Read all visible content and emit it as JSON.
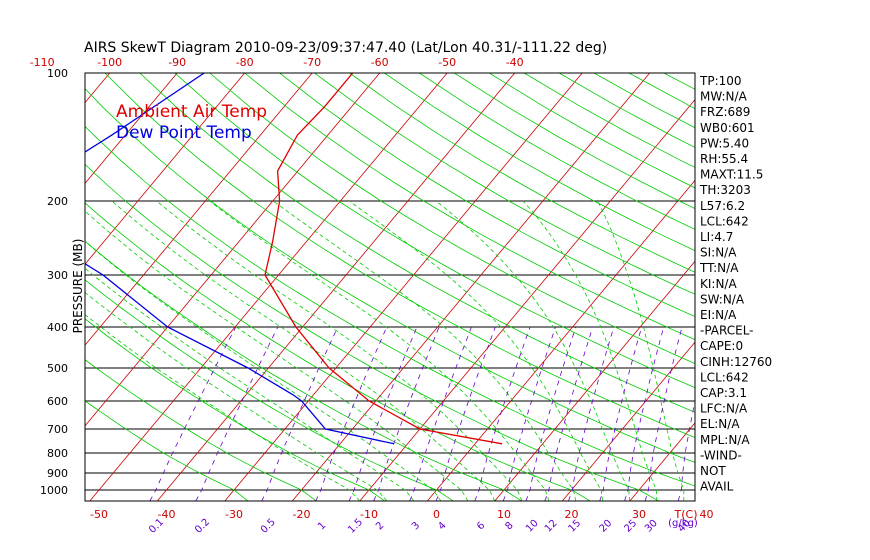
{
  "chart_data": {
    "type": "line",
    "title": "AIRS SkewT Diagram 2010-09-23/09:37:47.40 (Lat/Lon 40.31/-111.22 deg)",
    "ylabel": "PRESSURE (MB)",
    "xlabel_bottom": "T(C)",
    "xlabel_mixing": "(g/kg)",
    "y_scale": "log",
    "ylim": [
      1050,
      100
    ],
    "pressure_ticks": [
      100,
      200,
      300,
      400,
      500,
      600,
      700,
      800,
      900,
      1000
    ],
    "bottom_temp_ticks": [
      -50,
      -40,
      -30,
      -20,
      -10,
      0,
      10,
      20,
      30,
      40
    ],
    "top_temp_ticks": [
      -120,
      -110,
      -100,
      -90,
      -80,
      -70,
      -60,
      -50,
      -40
    ],
    "mixing_ratio_ticks": [
      "0.1",
      "0.2",
      "0.5",
      "1",
      "1.5",
      "2",
      "3",
      "4",
      "6",
      "8",
      "10",
      "12",
      "15",
      "20",
      "25",
      "30",
      "40"
    ],
    "legend": [
      "Ambient Air Temp",
      "Dew Point Temp"
    ],
    "series": [
      {
        "name": "Ambient Air Temp",
        "color": "#e00000",
        "points": [
          [
            -64,
            100
          ],
          [
            -64,
            120
          ],
          [
            -64.5,
            140
          ],
          [
            -63,
            170
          ],
          [
            -59,
            200
          ],
          [
            -55,
            250
          ],
          [
            -52,
            300
          ],
          [
            -41,
            400
          ],
          [
            -31,
            500
          ],
          [
            -21,
            600
          ],
          [
            -10,
            700
          ],
          [
            4,
            760
          ]
        ]
      },
      {
        "name": "Dew Point Temp",
        "color": "#0000e0",
        "points": [
          [
            -86,
            100
          ],
          [
            -92,
            140
          ],
          [
            -96,
            170
          ],
          [
            -94,
            200
          ],
          [
            -88,
            250
          ],
          [
            -76,
            300
          ],
          [
            -60,
            400
          ],
          [
            -43,
            500
          ],
          [
            -33,
            580
          ],
          [
            -31,
            600
          ],
          [
            -24,
            700
          ],
          [
            -12,
            760
          ]
        ]
      }
    ],
    "grid": true,
    "sounding_indices": [
      "TP:100",
      "MW:N/A",
      "FRZ:689",
      "WB0:601",
      "PW:5.40",
      "RH:55.4",
      "MAXT:11.5",
      "TH:3203",
      "L57:6.2",
      "LCL:642",
      "LI:4.7",
      "SI:N/A",
      "TT:N/A",
      "KI:N/A",
      "SW:N/A",
      "EI:N/A",
      "-PARCEL-",
      "CAPE:0",
      "CINH:12760",
      "LCL:642",
      "CAP:3.1",
      "LFC:N/A",
      "EL:N/A",
      "MPL:N/A",
      "-WIND-",
      "NOT",
      "AVAIL"
    ],
    "colors": {
      "isotherm": "#cc0000",
      "dry_adiabat": "#00cc00",
      "moist_adiabat": "#00cc00",
      "mixing_ratio": "#6600cc",
      "isobar": "#000000"
    }
  }
}
